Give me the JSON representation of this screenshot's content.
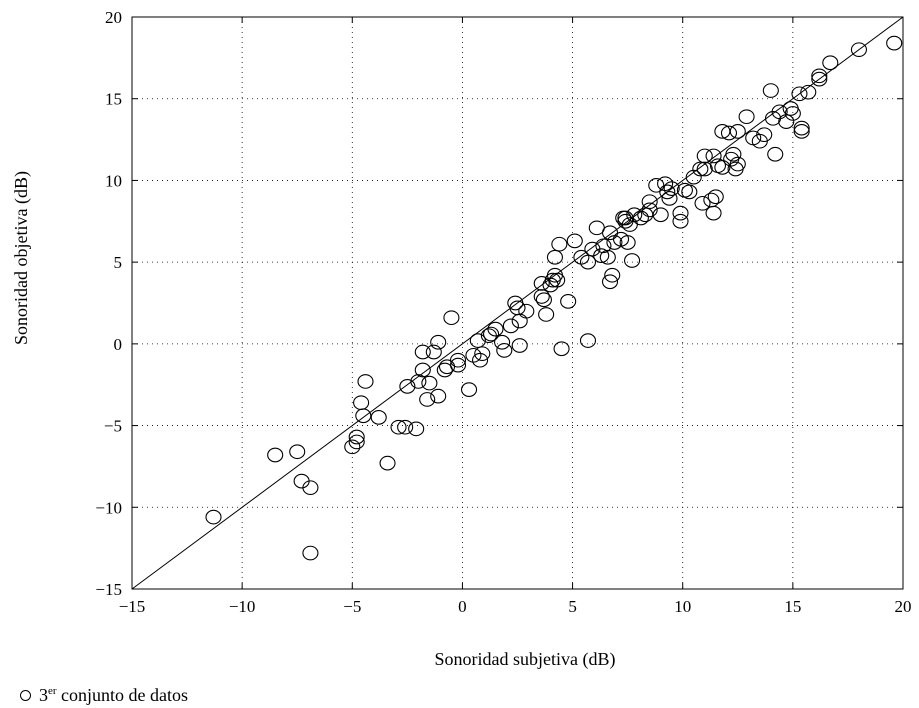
{
  "chart_data": {
    "type": "scatter",
    "xlabel": "Sonoridad subjetiva (dB)",
    "ylabel": "Sonoridad objetiva (dB)",
    "xlim": [
      -15,
      20
    ],
    "ylim": [
      -15,
      20
    ],
    "xticks": [
      -15,
      -10,
      -5,
      0,
      5,
      10,
      15,
      20
    ],
    "yticks": [
      -15,
      -10,
      -5,
      0,
      5,
      10,
      15,
      20
    ],
    "xtick_labels": [
      "−15",
      "−10",
      "−5",
      "0",
      "5",
      "10",
      "15",
      "20"
    ],
    "ytick_labels": [
      "−15",
      "−10",
      "−5",
      "0",
      "5",
      "10",
      "15",
      "20"
    ],
    "grid": true,
    "legend_position": "bottom-left",
    "reference_line": {
      "x": [
        -15,
        20
      ],
      "y": [
        -15,
        20
      ]
    },
    "series": [
      {
        "name": "3er conjunto de datos",
        "marker": "circle-open",
        "points": [
          [
            -11.3,
            -10.6
          ],
          [
            -8.5,
            -6.8
          ],
          [
            -7.5,
            -6.6
          ],
          [
            -7.3,
            -8.4
          ],
          [
            -6.9,
            -8.8
          ],
          [
            -6.9,
            -12.8
          ],
          [
            -5.0,
            -6.3
          ],
          [
            -4.8,
            -5.7
          ],
          [
            -4.8,
            -6.0
          ],
          [
            -4.6,
            -3.6
          ],
          [
            -4.5,
            -4.4
          ],
          [
            -4.4,
            -2.3
          ],
          [
            -3.8,
            -4.5
          ],
          [
            -3.4,
            -7.3
          ],
          [
            -2.9,
            -5.1
          ],
          [
            -2.6,
            -5.1
          ],
          [
            -2.5,
            -2.6
          ],
          [
            -2.1,
            -5.2
          ],
          [
            -2.0,
            -2.3
          ],
          [
            -1.8,
            -1.6
          ],
          [
            -1.8,
            -0.5
          ],
          [
            -1.6,
            -3.4
          ],
          [
            -1.5,
            -2.4
          ],
          [
            -1.3,
            -0.5
          ],
          [
            -1.1,
            0.1
          ],
          [
            -1.1,
            -3.2
          ],
          [
            -0.8,
            -1.6
          ],
          [
            -0.7,
            -1.4
          ],
          [
            -0.5,
            1.6
          ],
          [
            -0.2,
            -1.3
          ],
          [
            -0.2,
            -1.0
          ],
          [
            0.3,
            -2.8
          ],
          [
            0.5,
            -0.7
          ],
          [
            0.7,
            0.2
          ],
          [
            0.8,
            -1.0
          ],
          [
            0.9,
            -0.6
          ],
          [
            1.2,
            0.5
          ],
          [
            1.3,
            0.6
          ],
          [
            1.5,
            0.9
          ],
          [
            1.8,
            0.1
          ],
          [
            1.9,
            -0.4
          ],
          [
            2.2,
            1.1
          ],
          [
            2.4,
            2.5
          ],
          [
            2.5,
            2.2
          ],
          [
            2.6,
            1.4
          ],
          [
            2.6,
            -0.1
          ],
          [
            2.9,
            2.0
          ],
          [
            3.6,
            3.7
          ],
          [
            3.6,
            2.9
          ],
          [
            3.7,
            2.7
          ],
          [
            3.8,
            1.8
          ],
          [
            4.0,
            3.6
          ],
          [
            4.1,
            3.9
          ],
          [
            4.2,
            5.3
          ],
          [
            4.2,
            4.2
          ],
          [
            4.3,
            3.9
          ],
          [
            4.4,
            6.1
          ],
          [
            4.5,
            -0.3
          ],
          [
            4.8,
            2.6
          ],
          [
            5.1,
            6.3
          ],
          [
            5.4,
            5.3
          ],
          [
            5.7,
            0.2
          ],
          [
            5.7,
            5.0
          ],
          [
            5.9,
            5.8
          ],
          [
            6.1,
            7.1
          ],
          [
            6.3,
            5.4
          ],
          [
            6.4,
            6.0
          ],
          [
            6.6,
            5.3
          ],
          [
            6.7,
            6.8
          ],
          [
            6.7,
            3.8
          ],
          [
            6.8,
            4.2
          ],
          [
            6.9,
            6.2
          ],
          [
            7.2,
            6.4
          ],
          [
            7.3,
            7.7
          ],
          [
            7.4,
            7.7
          ],
          [
            7.4,
            7.5
          ],
          [
            7.5,
            6.2
          ],
          [
            7.6,
            7.3
          ],
          [
            7.7,
            5.1
          ],
          [
            7.8,
            7.9
          ],
          [
            8.1,
            7.7
          ],
          [
            8.3,
            7.9
          ],
          [
            8.5,
            8.7
          ],
          [
            8.5,
            8.2
          ],
          [
            8.8,
            9.7
          ],
          [
            9.0,
            7.9
          ],
          [
            9.2,
            9.8
          ],
          [
            9.3,
            9.3
          ],
          [
            9.4,
            8.9
          ],
          [
            9.5,
            9.5
          ],
          [
            9.9,
            7.5
          ],
          [
            9.9,
            8.0
          ],
          [
            10.1,
            9.4
          ],
          [
            10.3,
            9.3
          ],
          [
            10.5,
            10.2
          ],
          [
            10.8,
            10.7
          ],
          [
            10.9,
            8.6
          ],
          [
            11.0,
            10.7
          ],
          [
            11.0,
            11.5
          ],
          [
            11.3,
            8.8
          ],
          [
            11.4,
            11.5
          ],
          [
            11.4,
            8.0
          ],
          [
            11.5,
            9.0
          ],
          [
            11.6,
            10.9
          ],
          [
            11.8,
            13.0
          ],
          [
            11.8,
            10.8
          ],
          [
            12.1,
            12.9
          ],
          [
            12.2,
            11.3
          ],
          [
            12.3,
            11.6
          ],
          [
            12.4,
            10.7
          ],
          [
            12.5,
            11.0
          ],
          [
            12.5,
            13.0
          ],
          [
            12.9,
            13.9
          ],
          [
            13.2,
            12.6
          ],
          [
            13.5,
            12.4
          ],
          [
            13.7,
            12.8
          ],
          [
            14.0,
            15.5
          ],
          [
            14.1,
            13.8
          ],
          [
            14.2,
            11.6
          ],
          [
            14.4,
            14.2
          ],
          [
            14.7,
            13.6
          ],
          [
            14.9,
            14.4
          ],
          [
            15.0,
            14.1
          ],
          [
            15.3,
            15.3
          ],
          [
            15.4,
            13.2
          ],
          [
            15.4,
            13.0
          ],
          [
            15.7,
            15.4
          ],
          [
            16.2,
            16.4
          ],
          [
            16.2,
            16.2
          ],
          [
            16.7,
            17.2
          ],
          [
            18.0,
            18.0
          ],
          [
            19.6,
            18.4
          ]
        ]
      }
    ]
  },
  "legend": {
    "prefix": "3",
    "superscript": "er",
    "suffix": " conjunto de datos"
  }
}
